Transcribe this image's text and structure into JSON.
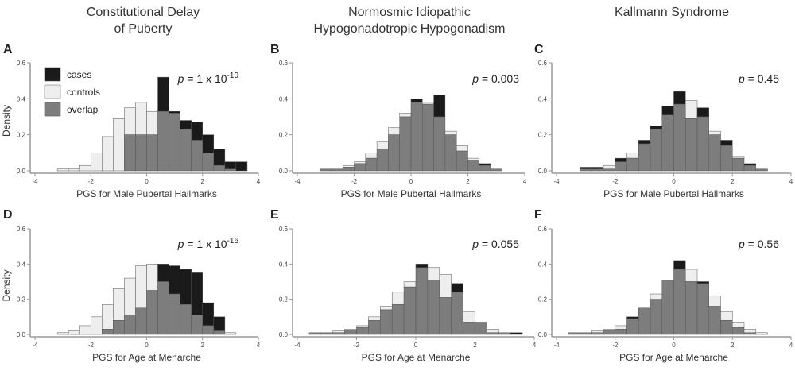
{
  "column_titles": [
    [
      "Constitutional Delay",
      "of Puberty"
    ],
    [
      "Normosmic Idiopathic",
      "Hypogonadotropic Hypogonadism"
    ],
    [
      "Kallmann Syndrome"
    ]
  ],
  "legend": {
    "cases": "cases",
    "controls": "controls",
    "overlap": "overlap"
  },
  "colors": {
    "cases": "#1a1a1a",
    "controls": "#eeeeee",
    "overlap": "#7d7d7d",
    "axis": "#9a9a9a"
  },
  "chart_data": [
    {
      "panel": "A",
      "type": "histogram",
      "ylabel": "Density",
      "xlabel": "PGS for Male Pubertal Hallmarks",
      "annotation": {
        "prefix": "p",
        "text": " = 1 x 10",
        "exp": "-10"
      },
      "xlim": [
        -4,
        4
      ],
      "ylim": [
        0,
        0.6
      ],
      "xticks": [
        "-4",
        "-2",
        "0",
        "2",
        "4"
      ],
      "yticks": [
        "0.0",
        "0.2",
        "0.4",
        "0.6"
      ],
      "bin_width": 0.4,
      "bin_start": -3.6,
      "cases": [
        0,
        0,
        0,
        0,
        0,
        0,
        0,
        0.2,
        0.2,
        0.2,
        0.52,
        0.33,
        0.28,
        0.27,
        0.2,
        0.12,
        0.05,
        0.05
      ],
      "controls": [
        0,
        0.01,
        0.01,
        0.03,
        0.1,
        0.19,
        0.29,
        0.35,
        0.38,
        0.33,
        0.33,
        0.32,
        0.23,
        0.17,
        0.1,
        0.03,
        0.01,
        0.0
      ]
    },
    {
      "panel": "B",
      "type": "histogram",
      "ylabel": "",
      "xlabel": "PGS for Male Pubertal Hallmarks",
      "annotation": {
        "prefix": "p",
        "text": " = 0.003",
        "exp": ""
      },
      "xlim": [
        -4,
        4
      ],
      "ylim": [
        0,
        0.6
      ],
      "xticks": [
        "-4",
        "-2",
        "0",
        "2",
        "4"
      ],
      "yticks": [
        "0.0",
        "0.2",
        "0.4",
        "0.6"
      ],
      "bin_width": 0.4,
      "bin_start": -3.6,
      "cases": [
        0,
        0.01,
        0.01,
        0.02,
        0.04,
        0.07,
        0.12,
        0.2,
        0.3,
        0.4,
        0.37,
        0.42,
        0.2,
        0.11,
        0.06,
        0.04,
        0.01,
        0.0
      ],
      "controls": [
        0,
        0.01,
        0.01,
        0.03,
        0.05,
        0.1,
        0.16,
        0.24,
        0.32,
        0.38,
        0.38,
        0.3,
        0.22,
        0.14,
        0.07,
        0.03,
        0.01,
        0.0
      ]
    },
    {
      "panel": "C",
      "type": "histogram",
      "ylabel": "",
      "xlabel": "PGS for Male Pubertal Hallmarks",
      "annotation": {
        "prefix": "p",
        "text": " = 0.45",
        "exp": ""
      },
      "xlim": [
        -4,
        4
      ],
      "ylim": [
        0,
        0.6
      ],
      "xticks": [
        "-4",
        "-2",
        "0",
        "2",
        "4"
      ],
      "yticks": [
        "0.0",
        "0.2",
        "0.4",
        "0.6"
      ],
      "bin_width": 0.4,
      "bin_start": -3.6,
      "cases": [
        0,
        0.02,
        0.02,
        0.01,
        0.07,
        0.07,
        0.17,
        0.25,
        0.36,
        0.44,
        0.29,
        0.35,
        0.2,
        0.17,
        0.07,
        0.04,
        0.01,
        0.0
      ],
      "controls": [
        0,
        0.01,
        0.01,
        0.03,
        0.05,
        0.1,
        0.15,
        0.23,
        0.31,
        0.37,
        0.39,
        0.3,
        0.22,
        0.14,
        0.08,
        0.03,
        0.01,
        0.0
      ]
    },
    {
      "panel": "D",
      "type": "histogram",
      "ylabel": "Density",
      "xlabel": "PGS for Age at Menarche",
      "annotation": {
        "prefix": "p",
        "text": " = 1 x 10",
        "exp": "-16"
      },
      "xlim": [
        -4,
        4
      ],
      "ylim": [
        0,
        0.6
      ],
      "xticks": [
        "-4",
        "-2",
        "0",
        "2",
        "4"
      ],
      "yticks": [
        "0.0",
        "0.2",
        "0.4",
        "0.6"
      ],
      "bin_width": 0.4,
      "bin_start": -3.6,
      "cases": [
        0,
        0,
        0,
        0,
        0,
        0.03,
        0.08,
        0.11,
        0.15,
        0.25,
        0.4,
        0.39,
        0.37,
        0.35,
        0.18,
        0.1,
        0.0,
        0.0
      ],
      "controls": [
        0,
        0.01,
        0.02,
        0.05,
        0.1,
        0.17,
        0.26,
        0.32,
        0.39,
        0.4,
        0.3,
        0.23,
        0.17,
        0.11,
        0.05,
        0.02,
        0.01,
        0.0
      ]
    },
    {
      "panel": "E",
      "type": "histogram",
      "ylabel": "",
      "xlabel": "PGS for Age at Menarche",
      "annotation": {
        "prefix": "p",
        "text": " = 0.055",
        "exp": ""
      },
      "xlim": [
        -4,
        4
      ],
      "ylim": [
        0,
        0.6
      ],
      "xticks": [
        "-4",
        "-2",
        "0",
        "2",
        "4"
      ],
      "yticks": [
        "0.0",
        "0.2",
        "0.4",
        "0.6"
      ],
      "bin_width": 0.4,
      "bin_start": -3.6,
      "cases": [
        0.01,
        0.01,
        0.01,
        0.02,
        0.04,
        0.08,
        0.14,
        0.17,
        0.27,
        0.4,
        0.31,
        0.21,
        0.29,
        0.07,
        0.07,
        0.01,
        0.01,
        0.01
      ],
      "controls": [
        0.01,
        0.01,
        0.02,
        0.03,
        0.05,
        0.1,
        0.16,
        0.24,
        0.3,
        0.38,
        0.38,
        0.34,
        0.24,
        0.13,
        0.07,
        0.03,
        0.01,
        0.0
      ]
    },
    {
      "panel": "F",
      "type": "histogram",
      "ylabel": "",
      "xlabel": "PGS for Age at Menarche",
      "annotation": {
        "prefix": "p",
        "text": " = 0.56",
        "exp": ""
      },
      "xlim": [
        -4,
        4
      ],
      "ylim": [
        0,
        0.6
      ],
      "xticks": [
        "-4",
        "-2",
        "0",
        "2",
        "4"
      ],
      "yticks": [
        "0.0",
        "0.2",
        "0.4",
        "0.6"
      ],
      "bin_width": 0.4,
      "bin_start": -3.6,
      "cases": [
        0.01,
        0.01,
        0.01,
        0.02,
        0.03,
        0.1,
        0.15,
        0.2,
        0.31,
        0.42,
        0.3,
        0.3,
        0.16,
        0.08,
        0.04,
        0.01,
        0.0,
        0.0
      ],
      "controls": [
        0.01,
        0.01,
        0.02,
        0.03,
        0.05,
        0.09,
        0.15,
        0.23,
        0.31,
        0.37,
        0.37,
        0.29,
        0.22,
        0.13,
        0.07,
        0.03,
        0.01,
        0.0
      ]
    }
  ]
}
